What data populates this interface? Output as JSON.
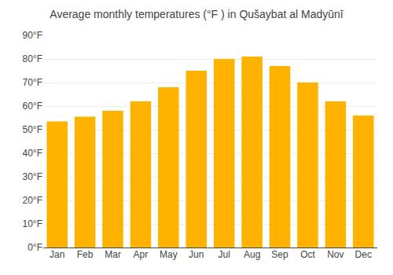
{
  "chart_data": {
    "type": "bar",
    "title": "Average monthly temperatures (°F ) in Qušaybat al Madyūnī",
    "categories": [
      "Jan",
      "Feb",
      "Mar",
      "Apr",
      "May",
      "Jun",
      "Jul",
      "Aug",
      "Sep",
      "Oct",
      "Nov",
      "Dec"
    ],
    "values": [
      53.5,
      55.5,
      58.0,
      62.0,
      68.0,
      75.0,
      80.0,
      81.0,
      77.0,
      70.0,
      62.0,
      56.0
    ],
    "color": "#FFB300",
    "ylim": [
      0,
      90
    ],
    "yticks": [
      {
        "value": 0,
        "label": "0°F"
      },
      {
        "value": 10,
        "label": "10°F"
      },
      {
        "value": 20,
        "label": "20°F"
      },
      {
        "value": 30,
        "label": "30°F"
      },
      {
        "value": 40,
        "label": "40°F"
      },
      {
        "value": 50,
        "label": "50°F"
      },
      {
        "value": 60,
        "label": "60°F"
      },
      {
        "value": 70,
        "label": "70°F"
      },
      {
        "value": 80,
        "label": "80°F"
      },
      {
        "value": 90,
        "label": "90°F"
      }
    ],
    "grid": true
  }
}
